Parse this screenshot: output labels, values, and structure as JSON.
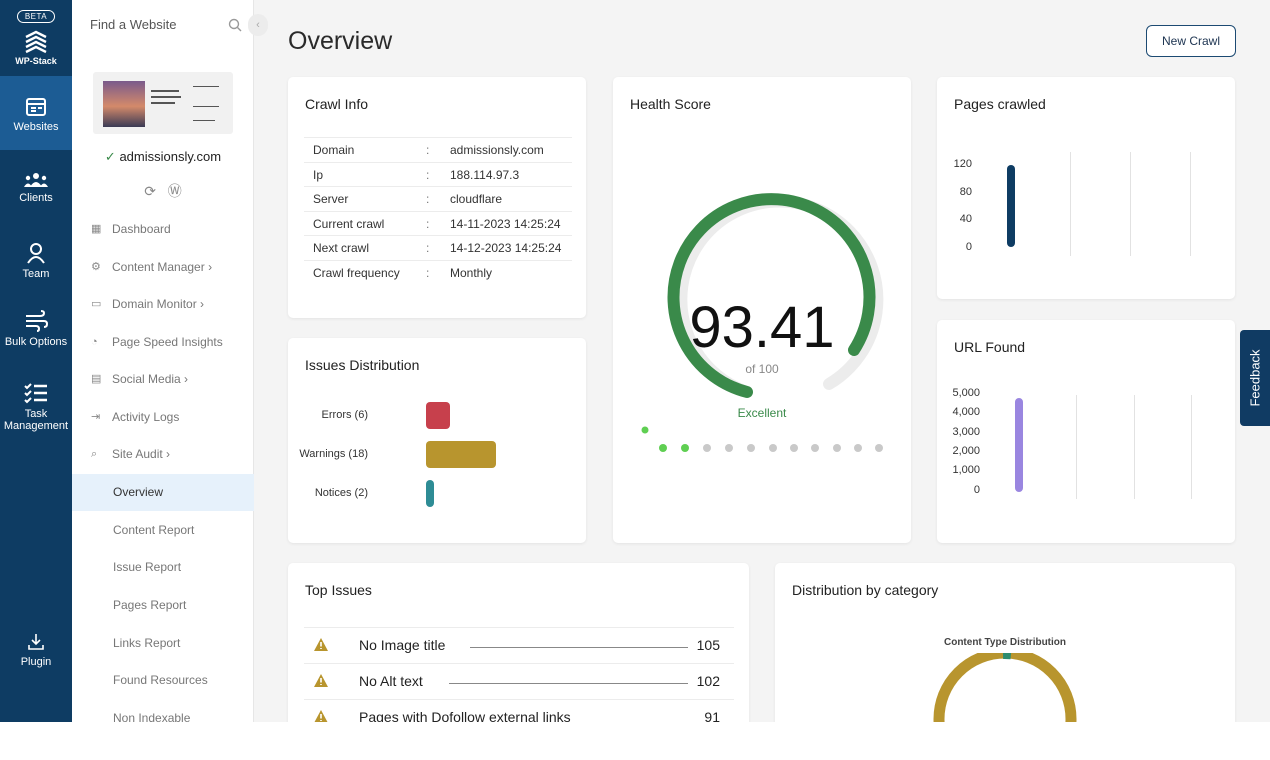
{
  "brand": {
    "beta": "BETA",
    "name": "WP-Stack"
  },
  "rail": [
    {
      "label": "Websites",
      "icon": "browser-window-icon",
      "active": true
    },
    {
      "label": "Clients",
      "icon": "group-icon"
    },
    {
      "label": "Team",
      "icon": "team-icon"
    },
    {
      "label": "Bulk Options",
      "icon": "wind-icon"
    },
    {
      "label": "Task Management",
      "icon": "checklist-icon"
    },
    {
      "label": "Plugin",
      "icon": "download-icon"
    }
  ],
  "sidebar": {
    "search_placeholder": "Find a Website",
    "site": "admissionsly.com",
    "nav": [
      {
        "label": "Dashboard",
        "icon": "dashboard-icon"
      },
      {
        "label": "Content Manager",
        "icon": "gear-icon",
        "chevron": "›"
      },
      {
        "label": "Domain Monitor",
        "icon": "monitor-icon",
        "chevron": "›"
      },
      {
        "label": "Page Speed Insights",
        "icon": "speed-icon"
      },
      {
        "label": "Social Media",
        "icon": "chat-icon",
        "chevron": "›"
      },
      {
        "label": "Activity Logs",
        "icon": "log-icon"
      },
      {
        "label": "Site Audit",
        "icon": "audit-icon",
        "chevron": "›"
      }
    ],
    "subnav": [
      "Overview",
      "Content Report",
      "Issue Report",
      "Pages Report",
      "Links Report",
      "Found Resources",
      "Non Indexable"
    ]
  },
  "page": {
    "title": "Overview",
    "new_crawl": "New Crawl"
  },
  "crawl_info": {
    "title": "Crawl Info",
    "separator": ":",
    "rows": [
      {
        "key": "Domain",
        "value": "admissionsly.com"
      },
      {
        "key": "Ip",
        "value": "188.114.97.3"
      },
      {
        "key": "Server",
        "value": "cloudflare"
      },
      {
        "key": "Current crawl",
        "value": "14-11-2023 14:25:24"
      },
      {
        "key": "Next crawl",
        "value": "14-12-2023 14:25:24"
      },
      {
        "key": "Crawl frequency",
        "value": "Monthly"
      }
    ]
  },
  "health": {
    "title": "Health Score",
    "score": "93.41",
    "of": "of 100",
    "rating": "Excellent",
    "score_value": 93.41,
    "score_max": 100,
    "color": "#3a8a4a"
  },
  "issues": {
    "title": "Issues Distribution",
    "items": [
      {
        "label": "Errors (6)",
        "value": 6,
        "color": "#c7404c"
      },
      {
        "label": "Warnings (18)",
        "value": 18,
        "color": "#b8952e"
      },
      {
        "label": "Notices (2)",
        "value": 2,
        "color": "#2e8c95"
      }
    ]
  },
  "pages_crawled": {
    "title": "Pages crawled",
    "ticks": [
      "120",
      "80",
      "40",
      "0"
    ],
    "value": 120,
    "color": "#0e3c63"
  },
  "url_found": {
    "title": "URL Found",
    "ticks": [
      "5,000",
      "4,000",
      "3,000",
      "2,000",
      "1,000",
      "0"
    ],
    "value": 5000,
    "color": "#9a86e0"
  },
  "top_issues": {
    "title": "Top Issues",
    "items": [
      {
        "name": "No Image title",
        "count": "105"
      },
      {
        "name": "No Alt text",
        "count": "102"
      },
      {
        "name": "Pages with Dofollow external links",
        "count": "91"
      }
    ]
  },
  "distribution": {
    "title": "Distribution by category",
    "chart_title": "Content Type Distribution",
    "color": "#b8952e",
    "accent": "#2e8c6e"
  },
  "feedback": "Feedback"
}
